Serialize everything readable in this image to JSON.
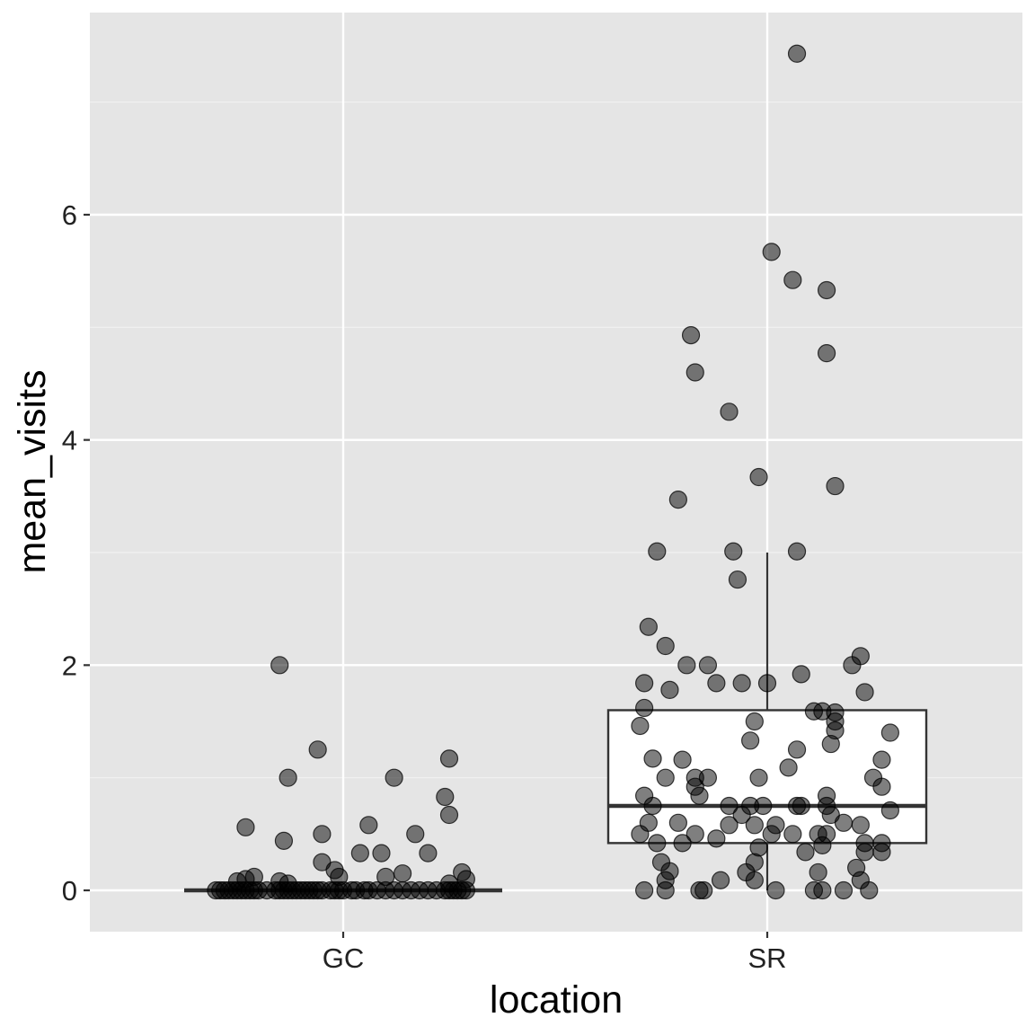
{
  "chart_data": {
    "type": "boxplot with jittered points",
    "title": "",
    "xlabel": "location",
    "ylabel": "mean_visits",
    "categories": [
      "GC",
      "SR"
    ],
    "ylim": [
      -0.37,
      7.7
    ],
    "y_ticks": [
      0,
      2,
      4,
      6
    ],
    "y_tick_labels": [
      "0",
      "2",
      "4",
      "6"
    ],
    "grid": true,
    "background": "#e5e5e5",
    "point_color": "#000000",
    "point_opacity": 0.5,
    "boxplots": [
      {
        "category": "GC",
        "q1": 0,
        "median": 0,
        "q3": 0,
        "whisker_low": 0,
        "whisker_high": 0
      },
      {
        "category": "SR",
        "q1": 0.42,
        "median": 0.75,
        "q3": 1.6,
        "whisker_low": 0,
        "whisker_high": 3.0
      }
    ],
    "points": [
      {
        "category": "GC",
        "x_offset": -0.3,
        "y": 0
      },
      {
        "category": "GC",
        "x_offset": -0.29,
        "y": 0
      },
      {
        "category": "GC",
        "x_offset": -0.28,
        "y": 0
      },
      {
        "category": "GC",
        "x_offset": -0.27,
        "y": 0
      },
      {
        "category": "GC",
        "x_offset": -0.26,
        "y": 0
      },
      {
        "category": "GC",
        "x_offset": -0.25,
        "y": 0
      },
      {
        "category": "GC",
        "x_offset": -0.24,
        "y": 0
      },
      {
        "category": "GC",
        "x_offset": -0.23,
        "y": 0
      },
      {
        "category": "GC",
        "x_offset": -0.22,
        "y": 0
      },
      {
        "category": "GC",
        "x_offset": -0.21,
        "y": 0
      },
      {
        "category": "GC",
        "x_offset": -0.2,
        "y": 0
      },
      {
        "category": "GC",
        "x_offset": -0.18,
        "y": 0
      },
      {
        "category": "GC",
        "x_offset": -0.16,
        "y": 0
      },
      {
        "category": "GC",
        "x_offset": -0.15,
        "y": 0
      },
      {
        "category": "GC",
        "x_offset": -0.14,
        "y": 0
      },
      {
        "category": "GC",
        "x_offset": -0.13,
        "y": 0
      },
      {
        "category": "GC",
        "x_offset": -0.12,
        "y": 0
      },
      {
        "category": "GC",
        "x_offset": -0.11,
        "y": 0
      },
      {
        "category": "GC",
        "x_offset": -0.1,
        "y": 0
      },
      {
        "category": "GC",
        "x_offset": -0.09,
        "y": 0
      },
      {
        "category": "GC",
        "x_offset": -0.08,
        "y": 0
      },
      {
        "category": "GC",
        "x_offset": -0.07,
        "y": 0
      },
      {
        "category": "GC",
        "x_offset": -0.06,
        "y": 0
      },
      {
        "category": "GC",
        "x_offset": -0.05,
        "y": 0
      },
      {
        "category": "GC",
        "x_offset": -0.03,
        "y": 0
      },
      {
        "category": "GC",
        "x_offset": -0.02,
        "y": 0
      },
      {
        "category": "GC",
        "x_offset": -0.01,
        "y": 0
      },
      {
        "category": "GC",
        "x_offset": 0.0,
        "y": 0
      },
      {
        "category": "GC",
        "x_offset": 0.02,
        "y": 0
      },
      {
        "category": "GC",
        "x_offset": 0.03,
        "y": 0
      },
      {
        "category": "GC",
        "x_offset": 0.05,
        "y": 0
      },
      {
        "category": "GC",
        "x_offset": 0.06,
        "y": 0
      },
      {
        "category": "GC",
        "x_offset": 0.08,
        "y": 0
      },
      {
        "category": "GC",
        "x_offset": 0.1,
        "y": 0
      },
      {
        "category": "GC",
        "x_offset": 0.12,
        "y": 0
      },
      {
        "category": "GC",
        "x_offset": 0.14,
        "y": 0
      },
      {
        "category": "GC",
        "x_offset": 0.16,
        "y": 0
      },
      {
        "category": "GC",
        "x_offset": 0.18,
        "y": 0
      },
      {
        "category": "GC",
        "x_offset": 0.2,
        "y": 0
      },
      {
        "category": "GC",
        "x_offset": 0.22,
        "y": 0
      },
      {
        "category": "GC",
        "x_offset": 0.24,
        "y": 0
      },
      {
        "category": "GC",
        "x_offset": 0.25,
        "y": 0
      },
      {
        "category": "GC",
        "x_offset": 0.26,
        "y": 0
      },
      {
        "category": "GC",
        "x_offset": 0.27,
        "y": 0
      },
      {
        "category": "GC",
        "x_offset": 0.28,
        "y": 0
      },
      {
        "category": "GC",
        "x_offset": 0.29,
        "y": 0
      },
      {
        "category": "GC",
        "x_offset": -0.25,
        "y": 0.08
      },
      {
        "category": "GC",
        "x_offset": -0.23,
        "y": 0.1
      },
      {
        "category": "GC",
        "x_offset": -0.21,
        "y": 0.12
      },
      {
        "category": "GC",
        "x_offset": -0.15,
        "y": 0.08
      },
      {
        "category": "GC",
        "x_offset": -0.13,
        "y": 0.06
      },
      {
        "category": "GC",
        "x_offset": -0.01,
        "y": 0.12
      },
      {
        "category": "GC",
        "x_offset": 0.1,
        "y": 0.12
      },
      {
        "category": "GC",
        "x_offset": 0.14,
        "y": 0.15
      },
      {
        "category": "GC",
        "x_offset": 0.25,
        "y": 0.06
      },
      {
        "category": "GC",
        "x_offset": 0.28,
        "y": 0.16
      },
      {
        "category": "GC",
        "x_offset": 0.29,
        "y": 0.1
      },
      {
        "category": "GC",
        "x_offset": -0.02,
        "y": 0.18
      },
      {
        "category": "GC",
        "x_offset": -0.05,
        "y": 0.25
      },
      {
        "category": "GC",
        "x_offset": 0.2,
        "y": 0.33
      },
      {
        "category": "GC",
        "x_offset": 0.09,
        "y": 0.33
      },
      {
        "category": "GC",
        "x_offset": 0.04,
        "y": 0.33
      },
      {
        "category": "GC",
        "x_offset": -0.14,
        "y": 0.44
      },
      {
        "category": "GC",
        "x_offset": -0.05,
        "y": 0.5
      },
      {
        "category": "GC",
        "x_offset": 0.17,
        "y": 0.5
      },
      {
        "category": "GC",
        "x_offset": -0.23,
        "y": 0.56
      },
      {
        "category": "GC",
        "x_offset": 0.06,
        "y": 0.58
      },
      {
        "category": "GC",
        "x_offset": 0.25,
        "y": 0.67
      },
      {
        "category": "GC",
        "x_offset": 0.24,
        "y": 0.83
      },
      {
        "category": "GC",
        "x_offset": -0.13,
        "y": 1.0
      },
      {
        "category": "GC",
        "x_offset": 0.12,
        "y": 1.0
      },
      {
        "category": "GC",
        "x_offset": -0.06,
        "y": 1.25
      },
      {
        "category": "GC",
        "x_offset": 0.25,
        "y": 1.17
      },
      {
        "category": "GC",
        "x_offset": -0.15,
        "y": 2.0
      },
      {
        "category": "SR",
        "x_offset": 0.07,
        "y": 7.43
      },
      {
        "category": "SR",
        "x_offset": 0.01,
        "y": 5.67
      },
      {
        "category": "SR",
        "x_offset": 0.06,
        "y": 5.42
      },
      {
        "category": "SR",
        "x_offset": 0.14,
        "y": 5.33
      },
      {
        "category": "SR",
        "x_offset": -0.18,
        "y": 4.93
      },
      {
        "category": "SR",
        "x_offset": 0.14,
        "y": 4.77
      },
      {
        "category": "SR",
        "x_offset": -0.17,
        "y": 4.6
      },
      {
        "category": "SR",
        "x_offset": -0.09,
        "y": 4.25
      },
      {
        "category": "SR",
        "x_offset": -0.02,
        "y": 3.67
      },
      {
        "category": "SR",
        "x_offset": 0.16,
        "y": 3.59
      },
      {
        "category": "SR",
        "x_offset": -0.21,
        "y": 3.47
      },
      {
        "category": "SR",
        "x_offset": -0.26,
        "y": 3.01
      },
      {
        "category": "SR",
        "x_offset": -0.08,
        "y": 3.01
      },
      {
        "category": "SR",
        "x_offset": 0.07,
        "y": 3.01
      },
      {
        "category": "SR",
        "x_offset": -0.07,
        "y": 2.76
      },
      {
        "category": "SR",
        "x_offset": -0.28,
        "y": 2.34
      },
      {
        "category": "SR",
        "x_offset": -0.24,
        "y": 2.17
      },
      {
        "category": "SR",
        "x_offset": -0.19,
        "y": 2.0
      },
      {
        "category": "SR",
        "x_offset": -0.14,
        "y": 2.0
      },
      {
        "category": "SR",
        "x_offset": 0.2,
        "y": 2.0
      },
      {
        "category": "SR",
        "x_offset": 0.22,
        "y": 2.08
      },
      {
        "category": "SR",
        "x_offset": 0.08,
        "y": 1.92
      },
      {
        "category": "SR",
        "x_offset": -0.29,
        "y": 1.84
      },
      {
        "category": "SR",
        "x_offset": -0.23,
        "y": 1.78
      },
      {
        "category": "SR",
        "x_offset": -0.12,
        "y": 1.84
      },
      {
        "category": "SR",
        "x_offset": -0.06,
        "y": 1.84
      },
      {
        "category": "SR",
        "x_offset": 0.0,
        "y": 1.84
      },
      {
        "category": "SR",
        "x_offset": 0.23,
        "y": 1.76
      },
      {
        "category": "SR",
        "x_offset": -0.29,
        "y": 1.62
      },
      {
        "category": "SR",
        "x_offset": 0.11,
        "y": 1.59
      },
      {
        "category": "SR",
        "x_offset": 0.13,
        "y": 1.59
      },
      {
        "category": "SR",
        "x_offset": 0.16,
        "y": 1.58
      },
      {
        "category": "SR",
        "x_offset": 0.16,
        "y": 1.5
      },
      {
        "category": "SR",
        "x_offset": -0.03,
        "y": 1.5
      },
      {
        "category": "SR",
        "x_offset": -0.3,
        "y": 1.46
      },
      {
        "category": "SR",
        "x_offset": 0.16,
        "y": 1.42
      },
      {
        "category": "SR",
        "x_offset": 0.29,
        "y": 1.4
      },
      {
        "category": "SR",
        "x_offset": -0.04,
        "y": 1.33
      },
      {
        "category": "SR",
        "x_offset": 0.15,
        "y": 1.3
      },
      {
        "category": "SR",
        "x_offset": 0.07,
        "y": 1.25
      },
      {
        "category": "SR",
        "x_offset": -0.27,
        "y": 1.17
      },
      {
        "category": "SR",
        "x_offset": -0.2,
        "y": 1.16
      },
      {
        "category": "SR",
        "x_offset": 0.27,
        "y": 1.16
      },
      {
        "category": "SR",
        "x_offset": 0.05,
        "y": 1.09
      },
      {
        "category": "SR",
        "x_offset": -0.24,
        "y": 1.0
      },
      {
        "category": "SR",
        "x_offset": -0.17,
        "y": 1.0
      },
      {
        "category": "SR",
        "x_offset": -0.14,
        "y": 1.0
      },
      {
        "category": "SR",
        "x_offset": -0.02,
        "y": 1.0
      },
      {
        "category": "SR",
        "x_offset": 0.25,
        "y": 1.0
      },
      {
        "category": "SR",
        "x_offset": -0.17,
        "y": 0.92
      },
      {
        "category": "SR",
        "x_offset": 0.27,
        "y": 0.92
      },
      {
        "category": "SR",
        "x_offset": -0.16,
        "y": 0.84
      },
      {
        "category": "SR",
        "x_offset": -0.29,
        "y": 0.84
      },
      {
        "category": "SR",
        "x_offset": 0.14,
        "y": 0.84
      },
      {
        "category": "SR",
        "x_offset": -0.27,
        "y": 0.75
      },
      {
        "category": "SR",
        "x_offset": -0.09,
        "y": 0.75
      },
      {
        "category": "SR",
        "x_offset": -0.04,
        "y": 0.75
      },
      {
        "category": "SR",
        "x_offset": -0.01,
        "y": 0.75
      },
      {
        "category": "SR",
        "x_offset": 0.07,
        "y": 0.75
      },
      {
        "category": "SR",
        "x_offset": 0.08,
        "y": 0.75
      },
      {
        "category": "SR",
        "x_offset": 0.14,
        "y": 0.75
      },
      {
        "category": "SR",
        "x_offset": 0.29,
        "y": 0.71
      },
      {
        "category": "SR",
        "x_offset": 0.15,
        "y": 0.67
      },
      {
        "category": "SR",
        "x_offset": -0.06,
        "y": 0.67
      },
      {
        "category": "SR",
        "x_offset": -0.28,
        "y": 0.6
      },
      {
        "category": "SR",
        "x_offset": -0.21,
        "y": 0.6
      },
      {
        "category": "SR",
        "x_offset": -0.09,
        "y": 0.58
      },
      {
        "category": "SR",
        "x_offset": -0.03,
        "y": 0.58
      },
      {
        "category": "SR",
        "x_offset": 0.02,
        "y": 0.58
      },
      {
        "category": "SR",
        "x_offset": 0.18,
        "y": 0.6
      },
      {
        "category": "SR",
        "x_offset": 0.22,
        "y": 0.58
      },
      {
        "category": "SR",
        "x_offset": -0.3,
        "y": 0.5
      },
      {
        "category": "SR",
        "x_offset": -0.17,
        "y": 0.5
      },
      {
        "category": "SR",
        "x_offset": 0.01,
        "y": 0.5
      },
      {
        "category": "SR",
        "x_offset": 0.06,
        "y": 0.5
      },
      {
        "category": "SR",
        "x_offset": 0.12,
        "y": 0.5
      },
      {
        "category": "SR",
        "x_offset": 0.14,
        "y": 0.5
      },
      {
        "category": "SR",
        "x_offset": -0.12,
        "y": 0.46
      },
      {
        "category": "SR",
        "x_offset": -0.26,
        "y": 0.42
      },
      {
        "category": "SR",
        "x_offset": -0.2,
        "y": 0.42
      },
      {
        "category": "SR",
        "x_offset": 0.13,
        "y": 0.4
      },
      {
        "category": "SR",
        "x_offset": 0.23,
        "y": 0.42
      },
      {
        "category": "SR",
        "x_offset": 0.27,
        "y": 0.42
      },
      {
        "category": "SR",
        "x_offset": -0.02,
        "y": 0.38
      },
      {
        "category": "SR",
        "x_offset": 0.09,
        "y": 0.34
      },
      {
        "category": "SR",
        "x_offset": 0.23,
        "y": 0.34
      },
      {
        "category": "SR",
        "x_offset": 0.27,
        "y": 0.34
      },
      {
        "category": "SR",
        "x_offset": -0.25,
        "y": 0.25
      },
      {
        "category": "SR",
        "x_offset": -0.03,
        "y": 0.25
      },
      {
        "category": "SR",
        "x_offset": 0.21,
        "y": 0.2
      },
      {
        "category": "SR",
        "x_offset": -0.23,
        "y": 0.17
      },
      {
        "category": "SR",
        "x_offset": -0.05,
        "y": 0.16
      },
      {
        "category": "SR",
        "x_offset": 0.12,
        "y": 0.16
      },
      {
        "category": "SR",
        "x_offset": -0.24,
        "y": 0.09
      },
      {
        "category": "SR",
        "x_offset": -0.11,
        "y": 0.09
      },
      {
        "category": "SR",
        "x_offset": -0.03,
        "y": 0.09
      },
      {
        "category": "SR",
        "x_offset": 0.22,
        "y": 0.09
      },
      {
        "category": "SR",
        "x_offset": -0.29,
        "y": 0
      },
      {
        "category": "SR",
        "x_offset": -0.24,
        "y": 0
      },
      {
        "category": "SR",
        "x_offset": -0.16,
        "y": 0
      },
      {
        "category": "SR",
        "x_offset": -0.15,
        "y": 0
      },
      {
        "category": "SR",
        "x_offset": 0.02,
        "y": 0
      },
      {
        "category": "SR",
        "x_offset": 0.11,
        "y": 0
      },
      {
        "category": "SR",
        "x_offset": 0.13,
        "y": 0
      },
      {
        "category": "SR",
        "x_offset": 0.18,
        "y": 0
      },
      {
        "category": "SR",
        "x_offset": 0.24,
        "y": 0
      }
    ]
  }
}
